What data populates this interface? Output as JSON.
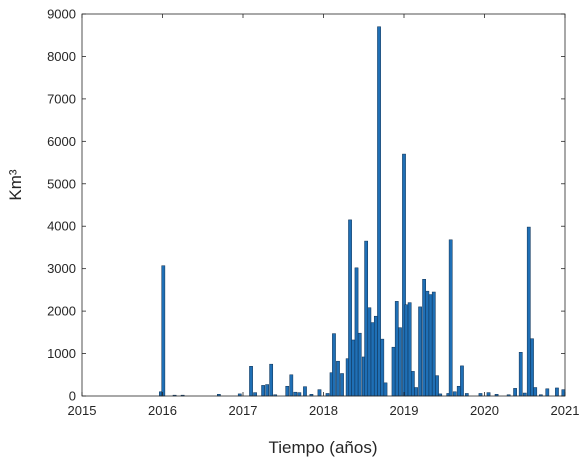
{
  "chart_data": {
    "type": "bar",
    "title": "",
    "xlabel": "Tiempo (años)",
    "ylabel": "Km³",
    "xlim": [
      2015,
      2021
    ],
    "ylim": [
      0,
      9000
    ],
    "x_ticks": [
      {
        "value": 2015,
        "label": "2015"
      },
      {
        "value": 2016,
        "label": "2016"
      },
      {
        "value": 2017,
        "label": "2017"
      },
      {
        "value": 2018,
        "label": "2018"
      },
      {
        "value": 2019,
        "label": "2019"
      },
      {
        "value": 2020,
        "label": "2020"
      },
      {
        "value": 2021,
        "label": "2021"
      }
    ],
    "y_ticks": [
      {
        "value": 0,
        "label": "0"
      },
      {
        "value": 1000,
        "label": "1000"
      },
      {
        "value": 2000,
        "label": "2000"
      },
      {
        "value": 3000,
        "label": "3000"
      },
      {
        "value": 4000,
        "label": "4000"
      },
      {
        "value": 5000,
        "label": "5000"
      },
      {
        "value": 6000,
        "label": "6000"
      },
      {
        "value": 7000,
        "label": "7000"
      },
      {
        "value": 8000,
        "label": "8000"
      },
      {
        "value": 9000,
        "label": "9000"
      }
    ],
    "grid": false,
    "bar_color": "#1f6fb5",
    "bar_edge_color": "#0d2f52",
    "series": [
      {
        "x": [
          2015.98,
          2016.01,
          2016.15,
          2016.25,
          2016.7,
          2016.96,
          2017.1,
          2017.15,
          2017.25,
          2017.3,
          2017.35,
          2017.4,
          2017.55,
          2017.6,
          2017.65,
          2017.7,
          2017.77,
          2017.85,
          2017.95,
          2018.05,
          2018.1,
          2018.13,
          2018.18,
          2018.23,
          2018.3,
          2018.33,
          2018.37,
          2018.41,
          2018.45,
          2018.5,
          2018.53,
          2018.57,
          2018.61,
          2018.65,
          2018.69,
          2018.73,
          2018.77,
          2018.87,
          2018.91,
          2018.95,
          2019.0,
          2019.03,
          2019.07,
          2019.11,
          2019.15,
          2019.2,
          2019.25,
          2019.29,
          2019.33,
          2019.37,
          2019.41,
          2019.45,
          2019.55,
          2019.58,
          2019.63,
          2019.68,
          2019.72,
          2019.78,
          2019.95,
          2020.05,
          2020.15,
          2020.3,
          2020.38,
          2020.45,
          2020.5,
          2020.55,
          2020.59,
          2020.63,
          2020.7,
          2020.78,
          2020.9,
          2020.98
        ],
        "values": [
          100,
          3070,
          20,
          20,
          40,
          50,
          700,
          80,
          250,
          270,
          750,
          30,
          230,
          500,
          90,
          80,
          220,
          40,
          150,
          60,
          550,
          1470,
          820,
          530,
          880,
          4150,
          1320,
          3020,
          1480,
          920,
          3650,
          2080,
          1730,
          1880,
          8700,
          1340,
          310,
          1150,
          2230,
          1610,
          5700,
          2150,
          2200,
          580,
          200,
          2100,
          2750,
          2470,
          2390,
          2450,
          480,
          50,
          60,
          3680,
          100,
          230,
          710,
          60,
          60,
          80,
          40,
          30,
          180,
          1030,
          70,
          3980,
          1350,
          200,
          30,
          170,
          190,
          150
        ]
      }
    ]
  }
}
